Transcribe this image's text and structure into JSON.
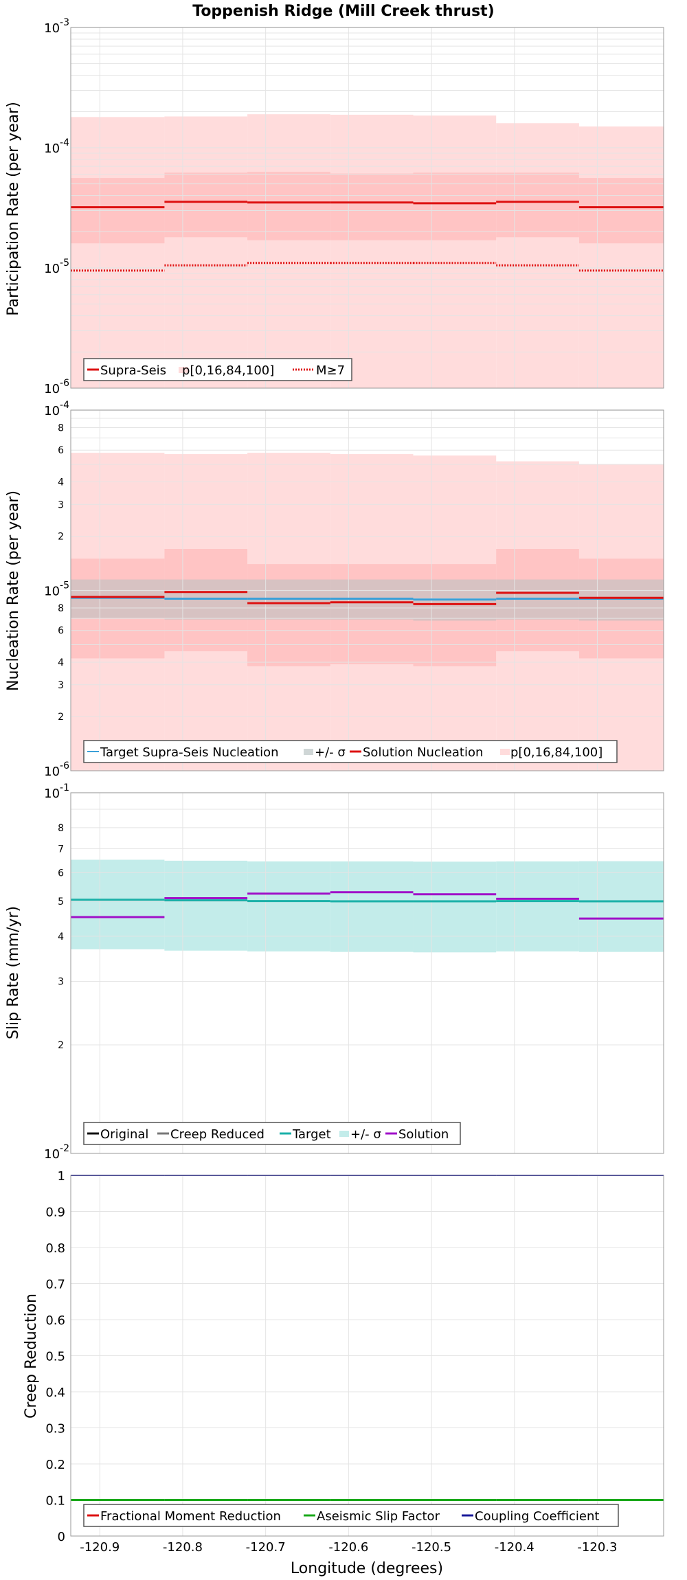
{
  "title": "Toppenish Ridge (Mill Creek thrust)",
  "xlabel": "Longitude (degrees)",
  "x_ticks": [
    "-120.9",
    "-120.8",
    "-120.7",
    "-120.6",
    "-120.5",
    "-120.4",
    "-120.3"
  ],
  "colors": {
    "solution_red": "#dd1111",
    "band_light": "#ffdcdc",
    "band_mid": "#ffc4c4",
    "target_teal": "#1ab0a8",
    "target_band": "#c3ecea",
    "purple": "#a010c8",
    "grey_band": "#c9c1c1",
    "target_blue": "#3aa0d8",
    "green": "#1aa81a",
    "navy": "#1a1a9a",
    "grid": "#e4e4e4"
  },
  "chart_data": [
    {
      "type": "line",
      "ylabel": "Participation Rate (per year)",
      "yscale": "log",
      "ylim": [
        1e-06,
        0.001
      ],
      "y_ticks": [
        {
          "base": "10",
          "exp": "-3"
        },
        {
          "base": "10",
          "exp": "-4"
        },
        {
          "base": "10",
          "exp": "-5"
        },
        {
          "base": "10",
          "exp": "-6"
        }
      ],
      "x_edges": [
        -120.935,
        -120.822,
        -120.722,
        -120.622,
        -120.522,
        -120.422,
        -120.322,
        -120.22
      ],
      "bands": [
        {
          "name": "p[0,16,84,100]",
          "lower": [
            1e-06,
            1e-06,
            1e-06,
            1e-06,
            1e-06,
            1e-06,
            1e-06
          ],
          "upper": [
            0.00018,
            0.000182,
            0.00019,
            0.000188,
            0.000185,
            0.00016,
            0.00015
          ]
        },
        {
          "name": "p16-84",
          "lower": [
            1.6e-05,
            1.8e-05,
            1.7e-05,
            1.7e-05,
            1.7e-05,
            1.8e-05,
            1.6e-05
          ],
          "upper": [
            5.6e-05,
            6.2e-05,
            6.3e-05,
            6.1e-05,
            6.2e-05,
            6.2e-05,
            5.6e-05
          ]
        }
      ],
      "series": [
        {
          "name": "Supra-Seis",
          "style": "solid",
          "values": [
            3.2e-05,
            3.55e-05,
            3.5e-05,
            3.5e-05,
            3.45e-05,
            3.55e-05,
            3.2e-05
          ]
        },
        {
          "name": "M≥7",
          "style": "dotted",
          "values": [
            9.5e-06,
            1.05e-05,
            1.1e-05,
            1.1e-05,
            1.1e-05,
            1.05e-05,
            9.5e-06
          ]
        }
      ],
      "legend": [
        "Supra-Seis",
        "p[0,16,84,100]",
        "M≥7"
      ],
      "legend_position": "bottom-left"
    },
    {
      "type": "line",
      "ylabel": "Nucleation Rate (per year)",
      "yscale": "log",
      "ylim": [
        1e-06,
        0.0001
      ],
      "y_ticks": [
        {
          "base": "10",
          "exp": "-4"
        },
        {
          "base": "10",
          "exp": "-5"
        },
        {
          "base": "10",
          "exp": "-6"
        }
      ],
      "minor_labels": [
        "8",
        "6",
        "4",
        "3",
        "2",
        "8",
        "6",
        "4",
        "3",
        "2"
      ],
      "x_edges": [
        -120.935,
        -120.822,
        -120.722,
        -120.622,
        -120.522,
        -120.422,
        -120.322,
        -120.22
      ],
      "bands": [
        {
          "name": "p[0,16,84,100]",
          "lower": [
            1e-06,
            1e-06,
            1e-06,
            1e-06,
            1e-06,
            1e-06,
            1e-06
          ],
          "upper": [
            5.8e-05,
            5.7e-05,
            5.8e-05,
            5.7e-05,
            5.6e-05,
            5.2e-05,
            5e-05
          ]
        },
        {
          "name": "p16-84",
          "lower": [
            4.2e-06,
            4.6e-06,
            3.8e-06,
            3.9e-06,
            3.8e-06,
            4.6e-06,
            4.2e-06
          ],
          "upper": [
            1.5e-05,
            1.7e-05,
            1.4e-05,
            1.4e-05,
            1.4e-05,
            1.7e-05,
            1.5e-05
          ]
        },
        {
          "name": "+/- σ",
          "lower": [
            7e-06,
            6.9e-06,
            6.9e-06,
            6.9e-06,
            6.8e-06,
            6.9e-06,
            6.8e-06
          ],
          "upper": [
            1.15e-05,
            1.15e-05,
            1.15e-05,
            1.15e-05,
            1.15e-05,
            1.15e-05,
            1.15e-05
          ]
        }
      ],
      "series": [
        {
          "name": "Target Supra-Seis Nucleation",
          "style": "solid",
          "values": [
            9.1e-06,
            9e-06,
            9e-06,
            9e-06,
            8.9e-06,
            9e-06,
            9e-06
          ]
        },
        {
          "name": "Solution Nucleation",
          "style": "solid",
          "values": [
            9.2e-06,
            9.8e-06,
            8.5e-06,
            8.6e-06,
            8.4e-06,
            9.7e-06,
            9.1e-06
          ]
        }
      ],
      "legend": [
        "Target Supra-Seis Nucleation",
        "+/- σ",
        "Solution Nucleation",
        "p[0,16,84,100]"
      ],
      "legend_position": "bottom-left"
    },
    {
      "type": "line",
      "ylabel": "Slip Rate (mm/yr)",
      "yscale": "log",
      "ylim": [
        0.01,
        0.1
      ],
      "y_ticks": [
        {
          "base": "10",
          "exp": "-1"
        },
        {
          "base": "10",
          "exp": "-2"
        }
      ],
      "minor_labels": [
        "8",
        "7",
        "6",
        "5",
        "4",
        "3",
        "2"
      ],
      "x_edges": [
        -120.935,
        -120.822,
        -120.722,
        -120.622,
        -120.522,
        -120.422,
        -120.322,
        -120.22
      ],
      "bands": [
        {
          "name": "+/- σ",
          "lower": [
            0.0368,
            0.0365,
            0.0363,
            0.0362,
            0.0361,
            0.0363,
            0.0362
          ],
          "upper": [
            0.0652,
            0.0648,
            0.0645,
            0.0645,
            0.0644,
            0.0645,
            0.0646
          ]
        }
      ],
      "series": [
        {
          "name": "Target",
          "style": "solid",
          "values": [
            0.0505,
            0.0503,
            0.0501,
            0.05,
            0.05,
            0.0501,
            0.05
          ]
        },
        {
          "name": "Solution",
          "style": "solid",
          "values": [
            0.0452,
            0.051,
            0.0525,
            0.053,
            0.0523,
            0.0508,
            0.0448
          ]
        }
      ],
      "legend": [
        "Original",
        "Creep Reduced",
        "Target",
        "+/- σ",
        "Solution"
      ],
      "legend_position": "bottom-left"
    },
    {
      "type": "line",
      "ylabel": "Creep Reduction",
      "yscale": "linear",
      "ylim": [
        0,
        1
      ],
      "y_ticks": [
        "1",
        "0.9",
        "0.8",
        "0.7",
        "0.6",
        "0.5",
        "0.4",
        "0.3",
        "0.2",
        "0.1",
        "0"
      ],
      "x_edges": [
        -120.935,
        -120.822,
        -120.722,
        -120.622,
        -120.522,
        -120.422,
        -120.322,
        -120.22
      ],
      "series": [
        {
          "name": "Aseismic Slip Factor",
          "style": "solid",
          "values": [
            0.1,
            0.1,
            0.1,
            0.1,
            0.1,
            0.1,
            0.1
          ]
        },
        {
          "name": "Coupling Coefficient",
          "style": "solid",
          "values": [
            1,
            1,
            1,
            1,
            1,
            1,
            1
          ]
        }
      ],
      "legend": [
        "Fractional Moment Reduction",
        "Aseismic Slip Factor",
        "Coupling Coefficient"
      ],
      "legend_position": "bottom-left"
    }
  ]
}
